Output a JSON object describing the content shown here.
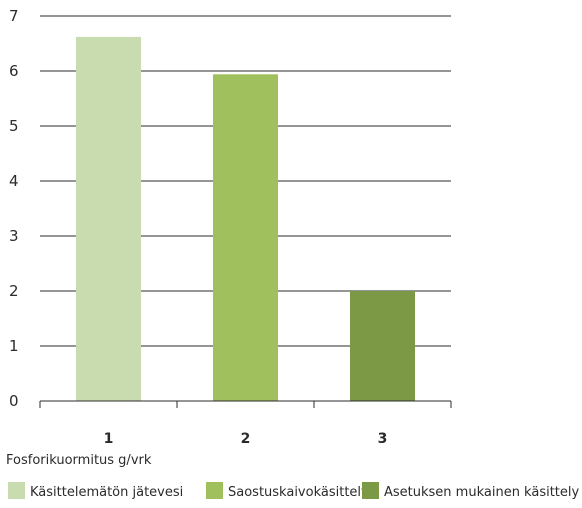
{
  "chart_data": {
    "type": "bar",
    "categories": [
      "1",
      "2",
      "3"
    ],
    "values": [
      6.62,
      5.94,
      2.0
    ],
    "bar_colors": [
      "#c8dcb0",
      "#9fc05c",
      "#7c9a45"
    ],
    "ylim": [
      0,
      7
    ],
    "yticks": [
      "0",
      "1",
      "2",
      "3",
      "4",
      "5",
      "6",
      "7"
    ],
    "xlabel": "Fosforikuormitus g/vrk",
    "ylabel": "",
    "title": "",
    "grid": true,
    "legend_position": "bottom",
    "legend": [
      {
        "label": "Käsittelemätön jätevesi",
        "color": "#c8dcb0"
      },
      {
        "label": "Saostuskaivokäsittely",
        "color": "#9fc05c"
      },
      {
        "label": "Asetuksen mukainen käsittely",
        "color": "#7c9a45"
      }
    ]
  },
  "colors": {
    "grid": "#2b2b2b",
    "axis": "#2b2b2b",
    "text": "#2b2b2b"
  }
}
